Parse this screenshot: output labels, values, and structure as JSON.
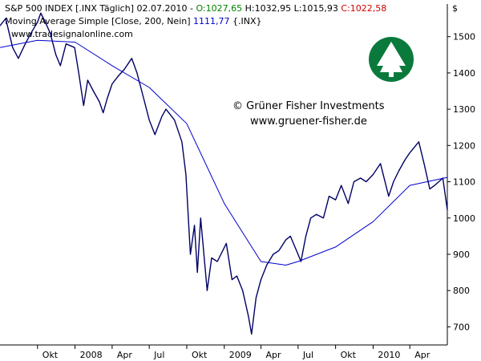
{
  "header": {
    "title": "S&P 500 INDEX [.INX  Täglich] 02.07.2010",
    "open": "O:1027,65",
    "high": "H:1032,95",
    "low": "L:1015,93",
    "close": "C:1022,58",
    "ma_label": "Moving Average Simple [Close, 200, Nein]",
    "ma_value": "1111,77",
    "ma_symbol": "{.INX}",
    "site": "www.tradesignalonline.com"
  },
  "watermark": {
    "line1": "© Grüner Fisher Investments",
    "line2": "www.gruener-fisher.de",
    "logo_icon": "tree-logo-icon",
    "logo_color": "#0a7a3c"
  },
  "colors": {
    "price_line": "#000066",
    "ma_line": "#0000cc",
    "open_value": "#008000",
    "close_value": "#cc0000"
  },
  "axis_currency": "$",
  "chart_data": {
    "type": "line",
    "title": "S&P 500 INDEX [.INX  Täglich] 02.07.2010",
    "xlabel": "",
    "ylabel": "$",
    "ylim": [
      650,
      1590
    ],
    "y_ticks": [
      700,
      800,
      900,
      1000,
      1100,
      1200,
      1300,
      1400,
      1500
    ],
    "x_ticks": [
      "Okt",
      "2008",
      "Apr",
      "Jul",
      "Okt",
      "2009",
      "Apr",
      "Jul",
      "Okt",
      "2010",
      "Apr"
    ],
    "x_tick_dates": [
      "2007-10-01",
      "2008-01-01",
      "2008-04-01",
      "2008-07-01",
      "2008-10-01",
      "2009-01-01",
      "2009-04-01",
      "2009-07-01",
      "2009-10-01",
      "2010-01-01",
      "2010-04-01"
    ],
    "xlim": [
      "2007-07-01",
      "2010-07-02"
    ],
    "grid": false,
    "series": [
      {
        "name": "S&P 500 INDEX",
        "color": "#000066",
        "x": [
          "2007-07-01",
          "2007-07-15",
          "2007-08-01",
          "2007-08-15",
          "2007-09-01",
          "2007-09-15",
          "2007-10-01",
          "2007-10-09",
          "2007-10-20",
          "2007-11-01",
          "2007-11-15",
          "2007-11-26",
          "2007-12-10",
          "2007-12-31",
          "2008-01-10",
          "2008-01-22",
          "2008-02-01",
          "2008-02-15",
          "2008-03-01",
          "2008-03-10",
          "2008-03-20",
          "2008-04-01",
          "2008-04-15",
          "2008-05-01",
          "2008-05-19",
          "2008-06-01",
          "2008-06-15",
          "2008-07-01",
          "2008-07-15",
          "2008-08-01",
          "2008-08-11",
          "2008-09-01",
          "2008-09-19",
          "2008-09-29",
          "2008-10-10",
          "2008-10-20",
          "2008-10-27",
          "2008-11-04",
          "2008-11-20",
          "2008-12-01",
          "2008-12-15",
          "2009-01-06",
          "2009-01-20",
          "2009-02-01",
          "2009-02-15",
          "2009-03-01",
          "2009-03-09",
          "2009-03-20",
          "2009-04-01",
          "2009-04-15",
          "2009-05-01",
          "2009-05-15",
          "2009-06-01",
          "2009-06-12",
          "2009-07-01",
          "2009-07-08",
          "2009-07-20",
          "2009-08-01",
          "2009-08-15",
          "2009-09-01",
          "2009-09-15",
          "2009-10-01",
          "2009-10-15",
          "2009-11-01",
          "2009-11-15",
          "2009-12-01",
          "2009-12-15",
          "2010-01-01",
          "2010-01-19",
          "2010-02-08",
          "2010-02-20",
          "2010-03-05",
          "2010-03-20",
          "2010-04-01",
          "2010-04-23",
          "2010-05-06",
          "2010-05-20",
          "2010-06-01",
          "2010-06-21",
          "2010-07-02"
        ],
        "y": [
          1530,
          1550,
          1470,
          1440,
          1480,
          1510,
          1540,
          1565,
          1540,
          1510,
          1450,
          1420,
          1480,
          1470,
          1400,
          1310,
          1380,
          1350,
          1320,
          1290,
          1330,
          1370,
          1390,
          1410,
          1440,
          1400,
          1340,
          1270,
          1230,
          1280,
          1300,
          1270,
          1210,
          1120,
          900,
          980,
          850,
          1000,
          800,
          890,
          880,
          930,
          830,
          840,
          800,
          730,
          680,
          780,
          830,
          870,
          900,
          910,
          940,
          950,
          900,
          880,
          950,
          1000,
          1010,
          1000,
          1060,
          1050,
          1090,
          1040,
          1100,
          1110,
          1100,
          1120,
          1150,
          1060,
          1100,
          1130,
          1160,
          1180,
          1210,
          1150,
          1080,
          1090,
          1110,
          1022
        ]
      },
      {
        "name": "Moving Average Simple [Close, 200, Nein]",
        "color": "#0000cc",
        "x": [
          "2007-07-01",
          "2007-10-01",
          "2008-01-01",
          "2008-04-01",
          "2008-07-01",
          "2008-10-01",
          "2009-01-01",
          "2009-04-01",
          "2009-06-01",
          "2009-07-01",
          "2009-10-01",
          "2010-01-01",
          "2010-04-01",
          "2010-07-02"
        ],
        "y": [
          1470,
          1490,
          1485,
          1420,
          1360,
          1260,
          1040,
          880,
          870,
          880,
          920,
          990,
          1090,
          1112
        ]
      }
    ]
  }
}
